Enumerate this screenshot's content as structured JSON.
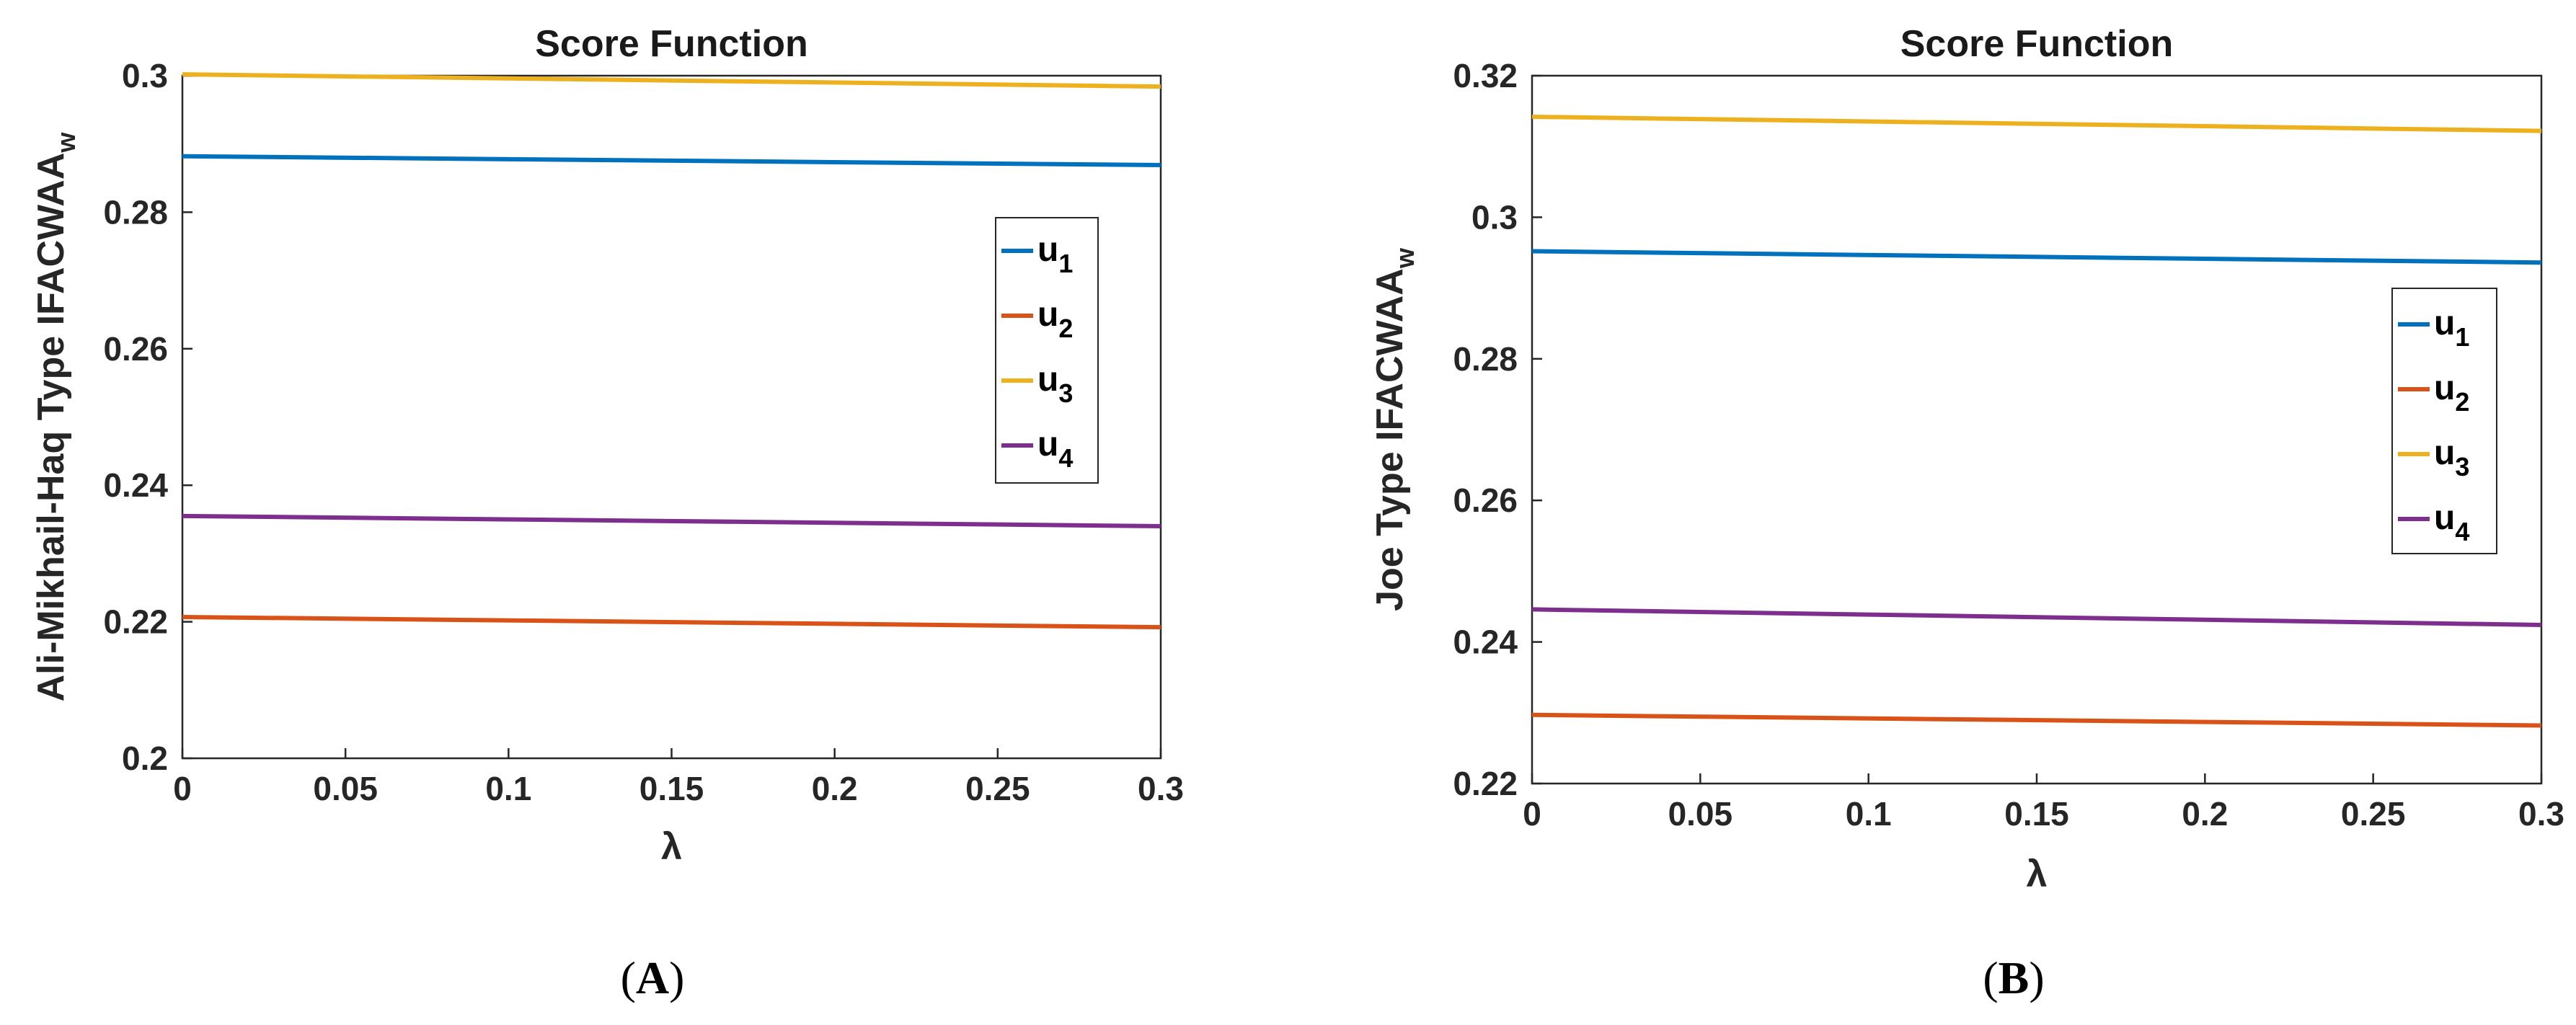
{
  "chart_data": [
    {
      "type": "line",
      "title": "Score Function",
      "xlabel": "λ",
      "ylabel_main": "Ali-Mikhail-Haq Type IFACWAA",
      "ylabel_sub": "w",
      "caption_open": "(",
      "caption": "A",
      "caption_close": ")",
      "xlim": [
        0,
        0.3
      ],
      "ylim": [
        0.2,
        0.3
      ],
      "xticks": [
        "0",
        "0.05",
        "0.1",
        "0.15",
        "0.2",
        "0.25",
        "0.3"
      ],
      "yticks": [
        "0.2",
        "0.22",
        "0.24",
        "0.26",
        "0.28",
        "0.3"
      ],
      "x": [
        0,
        0.3
      ],
      "series": [
        {
          "name": "u",
          "sub": "1",
          "color": "#0072BD",
          "values": [
            0.2882,
            0.2869
          ]
        },
        {
          "name": "u",
          "sub": "2",
          "color": "#D95319",
          "values": [
            0.2207,
            0.2192
          ]
        },
        {
          "name": "u",
          "sub": "3",
          "color": "#EDB120",
          "values": [
            0.3002,
            0.2984
          ]
        },
        {
          "name": "u",
          "sub": "4",
          "color": "#7E2F8E",
          "values": [
            0.2355,
            0.234
          ]
        }
      ],
      "legend": "right"
    },
    {
      "type": "line",
      "title": "Score Function",
      "xlabel": "λ",
      "ylabel_main": "Joe Type IFACWAA",
      "ylabel_sub": "w",
      "caption_open": "(",
      "caption": "B",
      "caption_close": ")",
      "xlim": [
        0,
        0.3
      ],
      "ylim": [
        0.22,
        0.32
      ],
      "xticks": [
        "0",
        "0.05",
        "0.1",
        "0.15",
        "0.2",
        "0.25",
        "0.3"
      ],
      "yticks": [
        "0.22",
        "0.24",
        "0.26",
        "0.28",
        "0.3",
        "0.32"
      ],
      "x": [
        0,
        0.3
      ],
      "series": [
        {
          "name": "u",
          "sub": "1",
          "color": "#0072BD",
          "values": [
            0.2952,
            0.2936
          ]
        },
        {
          "name": "u",
          "sub": "2",
          "color": "#D95319",
          "values": [
            0.2297,
            0.2282
          ]
        },
        {
          "name": "u",
          "sub": "3",
          "color": "#EDB120",
          "values": [
            0.3142,
            0.3122
          ]
        },
        {
          "name": "u",
          "sub": "4",
          "color": "#7E2F8E",
          "values": [
            0.2446,
            0.2424
          ]
        }
      ],
      "legend": "right"
    }
  ]
}
